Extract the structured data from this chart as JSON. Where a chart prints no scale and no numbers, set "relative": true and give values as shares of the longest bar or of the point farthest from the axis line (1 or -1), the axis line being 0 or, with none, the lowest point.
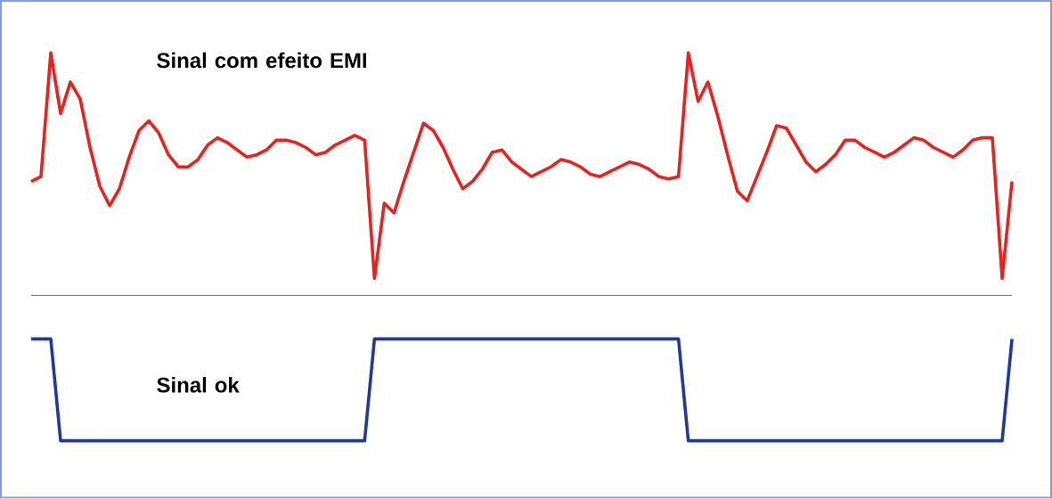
{
  "chart_data": {
    "type": "line",
    "relative": true,
    "categories": [
      null,
      null,
      null,
      null,
      null,
      null,
      null,
      null,
      null,
      null,
      null,
      null,
      null,
      null,
      null,
      null,
      null,
      null,
      null,
      null,
      null,
      null,
      null,
      null,
      null,
      null,
      null,
      null,
      null,
      null,
      null,
      null,
      null,
      null,
      null,
      null,
      null,
      null,
      null,
      null,
      null,
      null,
      null,
      null,
      null,
      null,
      null,
      null,
      null,
      null,
      null,
      null,
      null,
      null,
      null,
      null,
      null,
      null,
      null,
      null,
      null,
      null,
      null,
      null,
      null,
      null,
      null,
      null,
      null,
      null,
      null,
      null,
      null,
      null,
      null,
      null,
      null,
      null,
      null,
      null,
      null,
      null,
      null,
      null,
      null,
      null,
      null,
      null,
      null,
      null,
      null,
      null,
      null,
      null,
      null,
      null,
      null,
      null,
      null,
      null,
      null
    ],
    "series": [
      {
        "name": "Sinal com efeito EMI",
        "color": "#e8231f",
        "values": [
          0.47,
          0.49,
          1.0,
          0.75,
          0.88,
          0.81,
          0.61,
          0.45,
          0.37,
          0.44,
          0.57,
          0.68,
          0.72,
          0.67,
          0.58,
          0.53,
          0.53,
          0.56,
          0.62,
          0.65,
          0.63,
          0.6,
          0.57,
          0.58,
          0.6,
          0.64,
          0.64,
          0.63,
          0.61,
          0.58,
          0.59,
          0.62,
          0.64,
          0.66,
          0.64,
          0.07,
          0.38,
          0.34,
          0.47,
          0.59,
          0.71,
          0.68,
          0.61,
          0.52,
          0.44,
          0.47,
          0.52,
          0.59,
          0.6,
          0.55,
          0.52,
          0.49,
          0.51,
          0.53,
          0.56,
          0.55,
          0.53,
          0.5,
          0.49,
          0.51,
          0.53,
          0.55,
          0.54,
          0.52,
          0.49,
          0.48,
          0.49,
          1.0,
          0.8,
          0.88,
          0.74,
          0.58,
          0.43,
          0.39,
          0.49,
          0.59,
          0.7,
          0.69,
          0.62,
          0.55,
          0.51,
          0.54,
          0.58,
          0.64,
          0.64,
          0.61,
          0.59,
          0.57,
          0.59,
          0.62,
          0.65,
          0.64,
          0.61,
          0.59,
          0.57,
          0.6,
          0.64,
          0.65,
          0.65,
          0.07,
          0.47
        ]
      },
      {
        "name": "Sinal ok",
        "color": "#1f3a9e",
        "values": [
          -0.18,
          -0.18,
          -0.18,
          -0.6,
          -0.6,
          -0.6,
          -0.6,
          -0.6,
          -0.6,
          -0.6,
          -0.6,
          -0.6,
          -0.6,
          -0.6,
          -0.6,
          -0.6,
          -0.6,
          -0.6,
          -0.6,
          -0.6,
          -0.6,
          -0.6,
          -0.6,
          -0.6,
          -0.6,
          -0.6,
          -0.6,
          -0.6,
          -0.6,
          -0.6,
          -0.6,
          -0.6,
          -0.6,
          -0.6,
          -0.6,
          -0.18,
          -0.18,
          -0.18,
          -0.18,
          -0.18,
          -0.18,
          -0.18,
          -0.18,
          -0.18,
          -0.18,
          -0.18,
          -0.18,
          -0.18,
          -0.18,
          -0.18,
          -0.18,
          -0.18,
          -0.18,
          -0.18,
          -0.18,
          -0.18,
          -0.18,
          -0.18,
          -0.18,
          -0.18,
          -0.18,
          -0.18,
          -0.18,
          -0.18,
          -0.18,
          -0.18,
          -0.18,
          -0.6,
          -0.6,
          -0.6,
          -0.6,
          -0.6,
          -0.6,
          -0.6,
          -0.6,
          -0.6,
          -0.6,
          -0.6,
          -0.6,
          -0.6,
          -0.6,
          -0.6,
          -0.6,
          -0.6,
          -0.6,
          -0.6,
          -0.6,
          -0.6,
          -0.6,
          -0.6,
          -0.6,
          -0.6,
          -0.6,
          -0.6,
          -0.6,
          -0.6,
          -0.6,
          -0.6,
          -0.6,
          -0.6,
          -0.18
        ]
      }
    ]
  }
}
